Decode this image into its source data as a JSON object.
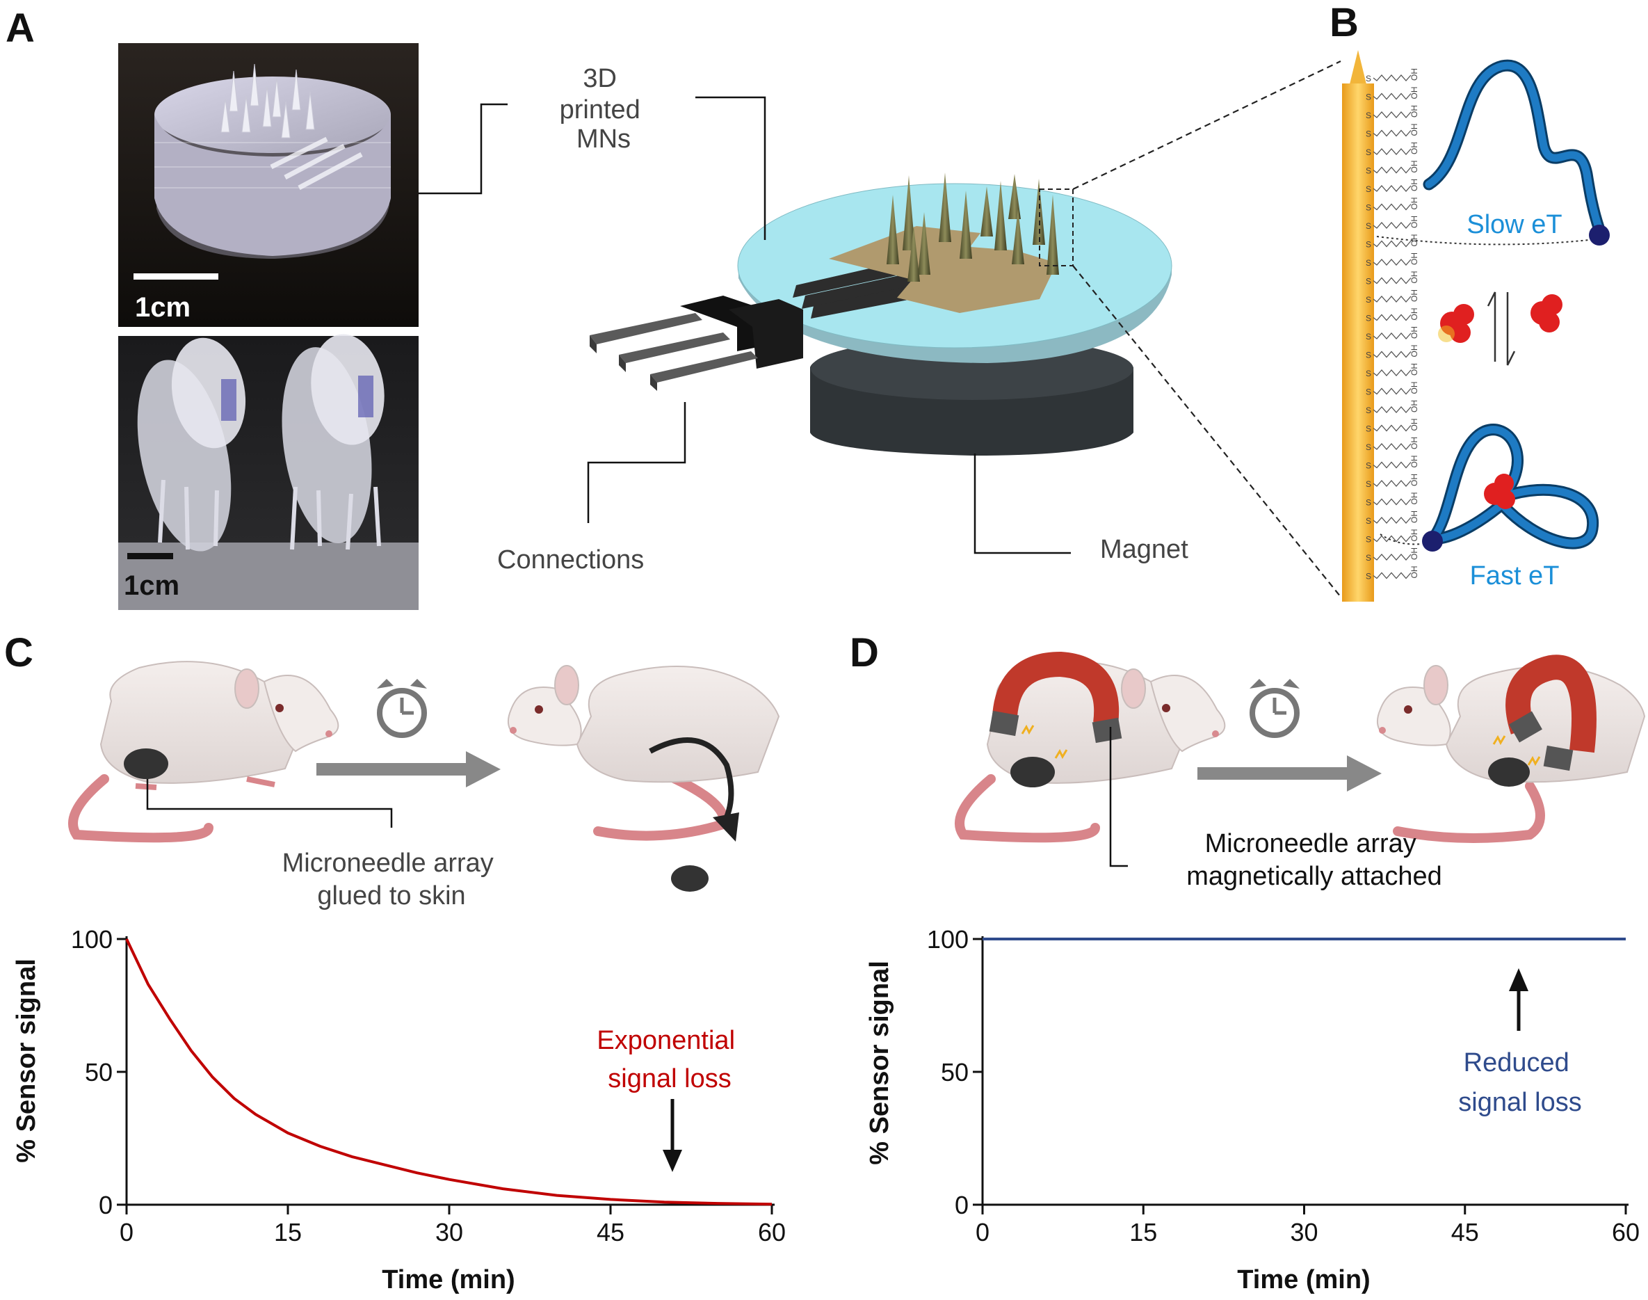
{
  "panel_a": {
    "letter": "A",
    "photo_top_scalebar": "1cm",
    "photo_bottom_scalebar": "1cm",
    "label_mns_line1": "3D",
    "label_mns_line2": "printed",
    "label_mns_line3": "MNs",
    "label_connections": "Connections",
    "label_magnet": "Magnet"
  },
  "panel_b": {
    "letter": "B",
    "slow_label": "Slow eT",
    "fast_label": "Fast eT",
    "oh_text": "OH",
    "s_text": "S"
  },
  "panel_c": {
    "letter": "C",
    "annotation_line1": "Microneedle array",
    "annotation_line2": "glued to skin",
    "chart_note_line1": "Exponential",
    "chart_note_line2": "signal loss"
  },
  "panel_d": {
    "letter": "D",
    "annotation_line1": "Microneedle array",
    "annotation_line2": "magnetically attached",
    "chart_note_line1": "Reduced",
    "chart_note_line2": "signal loss"
  },
  "colors": {
    "loss_curve": "#c00000",
    "stable_curve": "#2f4b8c",
    "dna_blue": "#1e7bc4",
    "gold": "#f2b53a",
    "disk_cyan": "#a8e6ef",
    "magnet_dark": "#2f3437",
    "target_red": "#e02020",
    "magnet_red": "#c0392b"
  },
  "icons": [
    "alarm-clock-icon",
    "arrow-right-icon",
    "magnet-icon",
    "rat-icon"
  ],
  "chart_data": [
    {
      "panel": "C",
      "type": "line",
      "xlabel": "Time (min)",
      "ylabel": "% Sensor signal",
      "xlim": [
        0,
        60
      ],
      "ylim": [
        0,
        100
      ],
      "xticks": [
        0,
        15,
        30,
        45,
        60
      ],
      "yticks": [
        0,
        50,
        100
      ],
      "x": [
        0,
        2,
        4,
        6,
        8,
        10,
        12,
        15,
        18,
        21,
        24,
        27,
        30,
        35,
        40,
        45,
        50,
        55,
        60
      ],
      "y": [
        100,
        83,
        70,
        58,
        48,
        40,
        34,
        27,
        22,
        18,
        15,
        12,
        9.5,
        6,
        3.5,
        2,
        1,
        0.5,
        0.2
      ]
    },
    {
      "panel": "D",
      "type": "line",
      "xlabel": "Time (min)",
      "ylabel": "% Sensor signal",
      "xlim": [
        0,
        60
      ],
      "ylim": [
        0,
        100
      ],
      "xticks": [
        0,
        15,
        30,
        45,
        60
      ],
      "yticks": [
        0,
        50,
        100
      ],
      "x": [
        0,
        60
      ],
      "y": [
        100,
        100
      ]
    }
  ]
}
